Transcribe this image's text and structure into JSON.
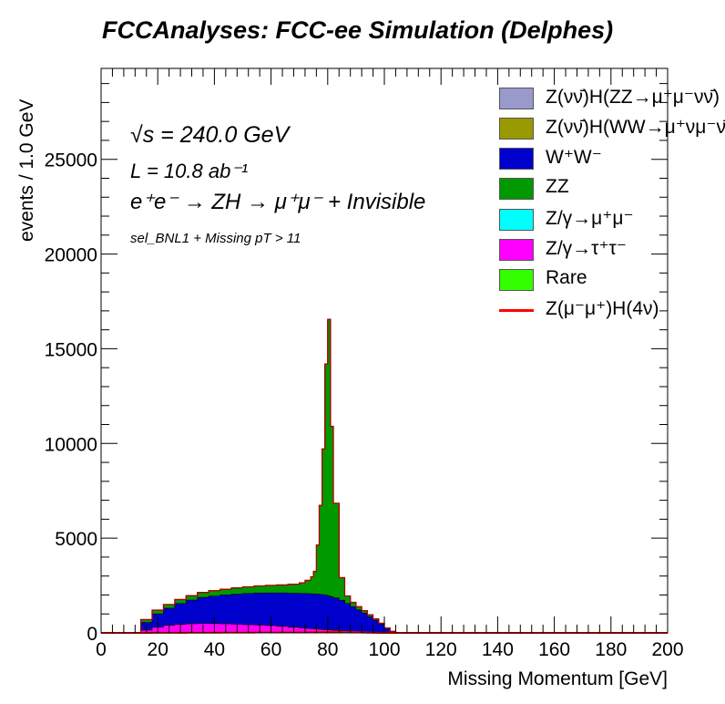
{
  "header": {
    "title": "FCCAnalyses: FCC-ee Simulation (Delphes)"
  },
  "annotations": {
    "line1": "√s = 240.0 GeV",
    "line2": "L = 10.8 ab⁻¹",
    "line3": "e⁺e⁻ → ZH → μ⁺μ⁻ + Invisible",
    "line4": "sel_BNL1 + Missing pT > 11"
  },
  "chart_data": {
    "type": "area",
    "title": "FCCAnalyses: FCC-ee Simulation (Delphes)",
    "xlabel": "Missing Momentum [GeV]",
    "ylabel": "events / 1.0 GeV",
    "xlim": [
      0,
      200
    ],
    "ylim": [
      0,
      29800
    ],
    "xticks": [
      0,
      20,
      40,
      60,
      80,
      100,
      120,
      140,
      160,
      180,
      200
    ],
    "yticks": [
      0,
      5000,
      10000,
      15000,
      20000,
      25000
    ],
    "grid": false,
    "legend_position": "top-right",
    "stacked": true,
    "x_bins": [
      11,
      14,
      18,
      22,
      26,
      30,
      34,
      38,
      42,
      46,
      50,
      54,
      58,
      62,
      66,
      70,
      72,
      74,
      75,
      76,
      77,
      78,
      79,
      80,
      81,
      82,
      84,
      86,
      88,
      90,
      92,
      94,
      96,
      98,
      100,
      102,
      104,
      106
    ],
    "series": [
      {
        "name": "Z(νν̄)H(ZZ→μ⁺μ⁻νν̄)",
        "color": "#9999cc",
        "values": [
          0,
          0,
          0,
          0,
          0,
          0,
          0,
          0,
          0,
          0,
          0,
          0,
          0,
          0,
          0,
          0,
          0,
          0,
          0,
          0,
          0,
          0,
          0,
          0,
          0,
          0,
          0,
          0,
          0,
          0,
          0,
          0,
          0,
          0,
          0,
          0,
          0,
          0
        ]
      },
      {
        "name": "Z(νν̄)H(WW→μ⁺νμ⁻ν̄)",
        "color": "#999900",
        "values": [
          0,
          0,
          0,
          0,
          0,
          0,
          0,
          0,
          0,
          0,
          0,
          0,
          0,
          0,
          0,
          0,
          0,
          0,
          0,
          0,
          0,
          0,
          0,
          0,
          0,
          0,
          0,
          0,
          0,
          0,
          0,
          0,
          0,
          0,
          0,
          0,
          0,
          0
        ]
      },
      {
        "name": "W⁺W⁻",
        "color": "#0000cc",
        "values": [
          0,
          400,
          700,
          900,
          1100,
          1250,
          1380,
          1450,
          1520,
          1580,
          1640,
          1680,
          1720,
          1760,
          1790,
          1820,
          1830,
          1840,
          1840,
          1840,
          1840,
          1830,
          1820,
          1790,
          1750,
          1700,
          1600,
          1450,
          1300,
          1150,
          1000,
          830,
          650,
          450,
          230,
          80,
          0,
          0
        ]
      },
      {
        "name": "ZZ",
        "color": "#009900",
        "values": [
          0,
          150,
          200,
          200,
          210,
          230,
          260,
          290,
          300,
          330,
          350,
          380,
          400,
          420,
          480,
          560,
          700,
          900,
          1200,
          2600,
          4700,
          7700,
          12200,
          14600,
          9000,
          5000,
          1200,
          400,
          230,
          170,
          130,
          100,
          70,
          50,
          20,
          0,
          0,
          0
        ]
      },
      {
        "name": "Z/γ→μ⁺μ⁻",
        "color": "#00ffff",
        "values": [
          0,
          0,
          0,
          0,
          0,
          0,
          0,
          0,
          0,
          0,
          0,
          0,
          0,
          0,
          0,
          0,
          0,
          0,
          0,
          0,
          0,
          0,
          0,
          0,
          0,
          0,
          0,
          0,
          0,
          0,
          0,
          0,
          0,
          0,
          0,
          0,
          0,
          0
        ]
      },
      {
        "name": "Z/γ→τ⁺τ⁻",
        "color": "#ff00ff",
        "values": [
          0,
          150,
          300,
          400,
          450,
          480,
          490,
          490,
          480,
          460,
          440,
          420,
          390,
          350,
          300,
          260,
          240,
          220,
          210,
          200,
          190,
          180,
          170,
          160,
          150,
          140,
          120,
          100,
          80,
          60,
          40,
          25,
          15,
          8,
          4,
          2,
          0,
          0
        ]
      },
      {
        "name": "Rare",
        "color": "#33ff00",
        "values": [
          0,
          0,
          0,
          0,
          0,
          0,
          0,
          0,
          0,
          0,
          0,
          0,
          0,
          0,
          0,
          0,
          0,
          0,
          0,
          0,
          0,
          0,
          0,
          0,
          0,
          0,
          0,
          0,
          0,
          0,
          0,
          0,
          0,
          0,
          0,
          0,
          0,
          0
        ]
      },
      {
        "name": "Z(μ⁻μ⁺)H(4ν)",
        "color": "#ff0000",
        "values": [
          0,
          2,
          4,
          6,
          8,
          10,
          12,
          14,
          16,
          18,
          20,
          22,
          25,
          28,
          30,
          32,
          34,
          36,
          38,
          40,
          42,
          44,
          46,
          48,
          50,
          52,
          50,
          45,
          40,
          30,
          20,
          10,
          5,
          2,
          0,
          0,
          0,
          0
        ]
      }
    ]
  },
  "legend": {
    "items": [
      {
        "label": "Z(νν̄)H(ZZ→μ⁺μ⁻νν̄)",
        "color": "#9999cc",
        "kind": "box"
      },
      {
        "label": "Z(νν̄)H(WW→μ⁺νμ⁻ν̄)",
        "color": "#999900",
        "kind": "box"
      },
      {
        "label": "W⁺W⁻",
        "color": "#0000cc",
        "kind": "box"
      },
      {
        "label": "ZZ",
        "color": "#009900",
        "kind": "box"
      },
      {
        "label": "Z/γ→μ⁺μ⁻",
        "color": "#00ffff",
        "kind": "box"
      },
      {
        "label": "Z/γ→τ⁺τ⁻",
        "color": "#ff00ff",
        "kind": "box"
      },
      {
        "label": "Rare",
        "color": "#33ff00",
        "kind": "box"
      },
      {
        "label": "Z(μ⁻μ⁺)H(4ν)",
        "color": "#ff0000",
        "kind": "line"
      }
    ]
  }
}
